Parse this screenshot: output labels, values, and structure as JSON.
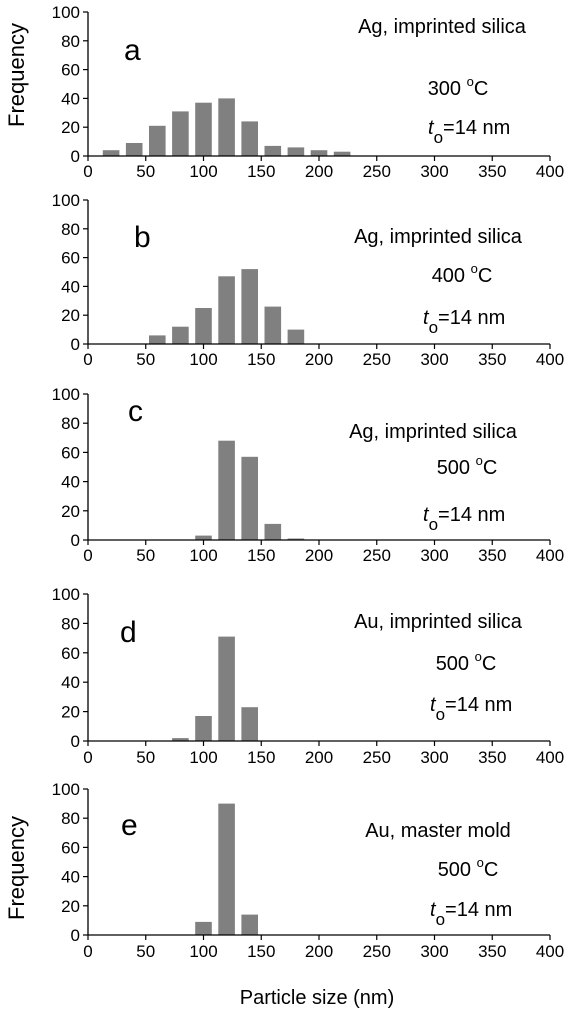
{
  "figure": {
    "shared_xlabel": "Particle size (nm)",
    "ylabel_top": "Frequency",
    "ylabel_bottom": "Frequency"
  },
  "chart_data": [
    {
      "type": "bar",
      "panel_label": "a",
      "annotation_material": "Ag, imprinted silica",
      "annotation_temp": "300",
      "annotation_temp_unit": "oC",
      "annotation_thickness_symbol": "t",
      "annotation_thickness_subscript": "o",
      "annotation_thickness_value": "=14 nm",
      "ylabel": "Frequency",
      "xlim": [
        0,
        400
      ],
      "ylim": [
        0,
        100
      ],
      "xticks": [
        0,
        50,
        100,
        150,
        200,
        250,
        300,
        350,
        400
      ],
      "yticks": [
        0,
        20,
        40,
        60,
        80,
        100
      ],
      "x": [
        20,
        40,
        60,
        80,
        100,
        120,
        140,
        160,
        180,
        200,
        220
      ],
      "values": [
        4,
        9,
        21,
        31,
        37,
        40,
        24,
        7,
        6,
        4,
        3
      ],
      "bar_color": "#808080"
    },
    {
      "type": "bar",
      "panel_label": "b",
      "annotation_material": "Ag, imprinted silica",
      "annotation_temp": "400",
      "annotation_temp_unit": "oC",
      "annotation_thickness_symbol": "t",
      "annotation_thickness_subscript": "o",
      "annotation_thickness_value": "=14 nm",
      "ylabel": "",
      "xlim": [
        0,
        400
      ],
      "ylim": [
        0,
        100
      ],
      "xticks": [
        0,
        50,
        100,
        150,
        200,
        250,
        300,
        350,
        400
      ],
      "yticks": [
        0,
        20,
        40,
        60,
        80,
        100
      ],
      "x": [
        60,
        80,
        100,
        120,
        140,
        160,
        180
      ],
      "values": [
        6,
        12,
        25,
        47,
        52,
        26,
        10
      ],
      "bar_color": "#808080"
    },
    {
      "type": "bar",
      "panel_label": "c",
      "annotation_material": "Ag, imprinted silica",
      "annotation_temp": "500",
      "annotation_temp_unit": "oC",
      "annotation_thickness_symbol": "t",
      "annotation_thickness_subscript": "o",
      "annotation_thickness_value": "=14 nm",
      "ylabel": "",
      "xlim": [
        0,
        400
      ],
      "ylim": [
        0,
        100
      ],
      "xticks": [
        0,
        50,
        100,
        150,
        200,
        250,
        300,
        350,
        400
      ],
      "yticks": [
        0,
        20,
        40,
        60,
        80,
        100
      ],
      "x": [
        100,
        120,
        140,
        160,
        180
      ],
      "values": [
        3,
        68,
        57,
        11,
        1
      ],
      "bar_color": "#808080"
    },
    {
      "type": "bar",
      "panel_label": "d",
      "annotation_material": "Au, imprinted silica",
      "annotation_temp": "500",
      "annotation_temp_unit": "oC",
      "annotation_thickness_symbol": "t",
      "annotation_thickness_subscript": "o",
      "annotation_thickness_value": "=14 nm",
      "ylabel": "",
      "xlim": [
        0,
        400
      ],
      "ylim": [
        0,
        100
      ],
      "xticks": [
        0,
        50,
        100,
        150,
        200,
        250,
        300,
        350,
        400
      ],
      "yticks": [
        0,
        20,
        40,
        60,
        80,
        100
      ],
      "x": [
        80,
        100,
        120,
        140
      ],
      "values": [
        2,
        17,
        71,
        23
      ],
      "bar_color": "#808080"
    },
    {
      "type": "bar",
      "panel_label": "e",
      "annotation_material": "Au, master mold",
      "annotation_temp": "500",
      "annotation_temp_unit": "oC",
      "annotation_thickness_symbol": "t",
      "annotation_thickness_subscript": "o",
      "annotation_thickness_value": "=14 nm",
      "ylabel": "Frequency",
      "xlim": [
        0,
        400
      ],
      "ylim": [
        0,
        100
      ],
      "xticks": [
        0,
        50,
        100,
        150,
        200,
        250,
        300,
        350,
        400
      ],
      "yticks": [
        0,
        20,
        40,
        60,
        80,
        100
      ],
      "x": [
        100,
        120,
        140
      ],
      "values": [
        9,
        90,
        14
      ],
      "bar_color": "#808080"
    }
  ]
}
